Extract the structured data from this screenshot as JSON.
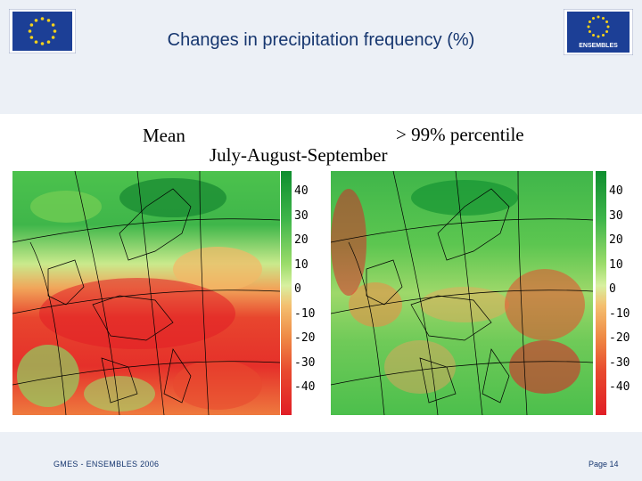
{
  "slide": {
    "title": "Changes in precipitation frequency (%)",
    "label_mean": "Mean",
    "label_percentile": "> 99% percentile",
    "label_season": "July-August-September",
    "footer_left": "GMES - ENSEMBLES 2006",
    "footer_right": "Page 14"
  },
  "logos": {
    "eu_flag": "eu-flag-icon",
    "ensembles": "ENSEMBLES"
  },
  "colorbar": {
    "ticks": [
      "40",
      "30",
      "20",
      "10",
      "0",
      "-10",
      "-20",
      "-30",
      "-40"
    ],
    "colors": {
      "positive_high": "#0e8e2e",
      "positive_mid": "#3fb64a",
      "near_zero": "#d8f0a0",
      "negative_mid": "#ef8a45",
      "negative_high": "#e11e26"
    }
  },
  "maps": [
    {
      "name": "mean",
      "region": "Europe"
    },
    {
      "name": "percentile-99",
      "region": "Europe"
    }
  ]
}
